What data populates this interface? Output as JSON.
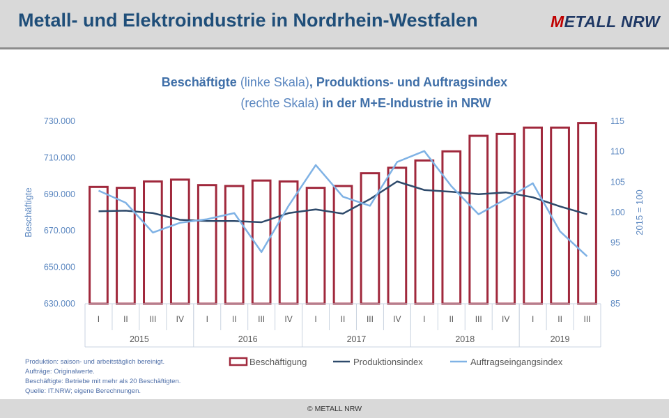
{
  "header": {
    "title": "Metall- und Elektroindustrie in Nordrhein-Westfalen",
    "logo_m": "M",
    "logo_rest": "ETALL NRW"
  },
  "chart_title": {
    "part1": "Beschäftigte",
    "part2": " (linke Skala)",
    "part3": ", Produktions- und Auftragsindex",
    "part4": "(rechte Skala)",
    "part5": " in der M+E-Industrie in NRW"
  },
  "notes": [
    "Produktion: saison- und arbeitstäglich bereinigt.",
    "Aufträge: Originalwerte.",
    "Beschäftigte: Betriebe mit mehr als 20 Beschäftigten.",
    "Quelle: IT.NRW; eigene Berechnungen."
  ],
  "footer": "© METALL NRW",
  "colors": {
    "bars": "#a0283c",
    "production": "#2e4a6b",
    "orders": "#7fb2e5",
    "axis_text": "#5b87c0"
  },
  "chart_data": {
    "type": "bar",
    "categories": [
      "I",
      "II",
      "III",
      "IV",
      "I",
      "II",
      "III",
      "IV",
      "I",
      "II",
      "III",
      "IV",
      "I",
      "II",
      "III",
      "IV",
      "I",
      "II",
      "III"
    ],
    "years": [
      "2015",
      "2016",
      "2017",
      "2018",
      "2019"
    ],
    "ylabel": "Beschäftigte",
    "ylabel_right": "2015 = 100",
    "ylim": [
      630000,
      730000
    ],
    "ylim_right": [
      85,
      115
    ],
    "yticks": [
      "630.000",
      "650.000",
      "670.000",
      "690.000",
      "710.000",
      "730.000"
    ],
    "yticks_right": [
      "85",
      "90",
      "95",
      "100",
      "105",
      "110",
      "115"
    ],
    "series": [
      {
        "name": "Beschäftigung",
        "axis": "left",
        "kind": "bar",
        "values": [
          694000,
          693500,
          697000,
          698000,
          695000,
          694500,
          697500,
          697000,
          693500,
          694500,
          701500,
          704500,
          708500,
          713500,
          722000,
          723000,
          726500,
          726500,
          729000
        ]
      },
      {
        "name": "Produktionsindex",
        "axis": "right",
        "kind": "line",
        "values": [
          100.2,
          100.3,
          99.9,
          98.8,
          98.6,
          98.6,
          98.4,
          99.9,
          100.5,
          99.8,
          102.2,
          105.1,
          103.7,
          103.4,
          103.0,
          103.3,
          102.5,
          101.0,
          99.7
        ]
      },
      {
        "name": "Auftragseingangsindex",
        "axis": "right",
        "kind": "line",
        "values": [
          103.6,
          101.6,
          96.7,
          98.3,
          98.9,
          99.9,
          93.5,
          101.1,
          107.8,
          102.6,
          101.1,
          108.3,
          110.1,
          104.3,
          99.7,
          102.2,
          104.8,
          96.9,
          92.8
        ]
      }
    ],
    "legend_position": "bottom"
  }
}
